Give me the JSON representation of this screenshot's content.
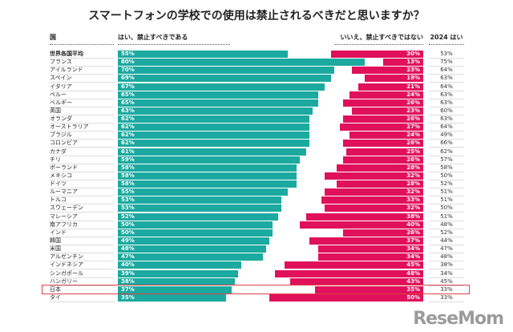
{
  "chart_data": {
    "type": "bar",
    "title": "スマートフォンの学校での使用は禁止されるべきだと思いますか？",
    "headers": {
      "country": "国",
      "yes": "はい、禁止すべきである",
      "no": "いいえ、禁止すべきではない",
      "prev": "2024 はい"
    },
    "categories": [
      "世界各国平均",
      "フランス",
      "アイルランド",
      "スペイン",
      "イタリア",
      "ペルー",
      "ベルギー",
      "英国",
      "オランダ",
      "オーストラリア",
      "ブラジル",
      "コロンビア",
      "カナダ",
      "チリ",
      "ポーランド",
      "メキシコ",
      "ドイツ",
      "ルーマニア",
      "トルコ",
      "スウェーデン",
      "マレーシア",
      "南アフリカ",
      "インド",
      "韓国",
      "米国",
      "アルゼンチン",
      "インドネシア",
      "シンガポール",
      "ハンガリー",
      "日本",
      "タイ"
    ],
    "series": [
      {
        "name": "はい、禁止すべきである",
        "color": "#1ba9a0",
        "values": [
          55,
          80,
          70,
          69,
          67,
          65,
          65,
          63,
          62,
          62,
          62,
          62,
          61,
          59,
          58,
          58,
          58,
          55,
          53,
          53,
          52,
          50,
          50,
          49,
          48,
          47,
          40,
          39,
          38,
          37,
          35
        ]
      },
      {
        "name": "いいえ、禁止すべきではない",
        "color": "#e0105a",
        "values": [
          30,
          13,
          23,
          19,
          21,
          24,
          26,
          23,
          26,
          27,
          24,
          26,
          25,
          26,
          28,
          32,
          28,
          32,
          33,
          32,
          38,
          40,
          26,
          37,
          34,
          34,
          45,
          48,
          43,
          35,
          50
        ]
      },
      {
        "name": "2024 はい",
        "values": [
          53,
          75,
          64,
          63,
          64,
          63,
          63,
          60,
          63,
          64,
          49,
          66,
          62,
          57,
          58,
          50,
          52,
          51,
          51,
          50,
          51,
          48,
          52,
          44,
          47,
          48,
          38,
          34,
          45,
          33,
          33
        ]
      }
    ],
    "unit": "%",
    "highlight": "日本",
    "highlight_color": "#e0424a"
  },
  "watermark": "ReseMom"
}
